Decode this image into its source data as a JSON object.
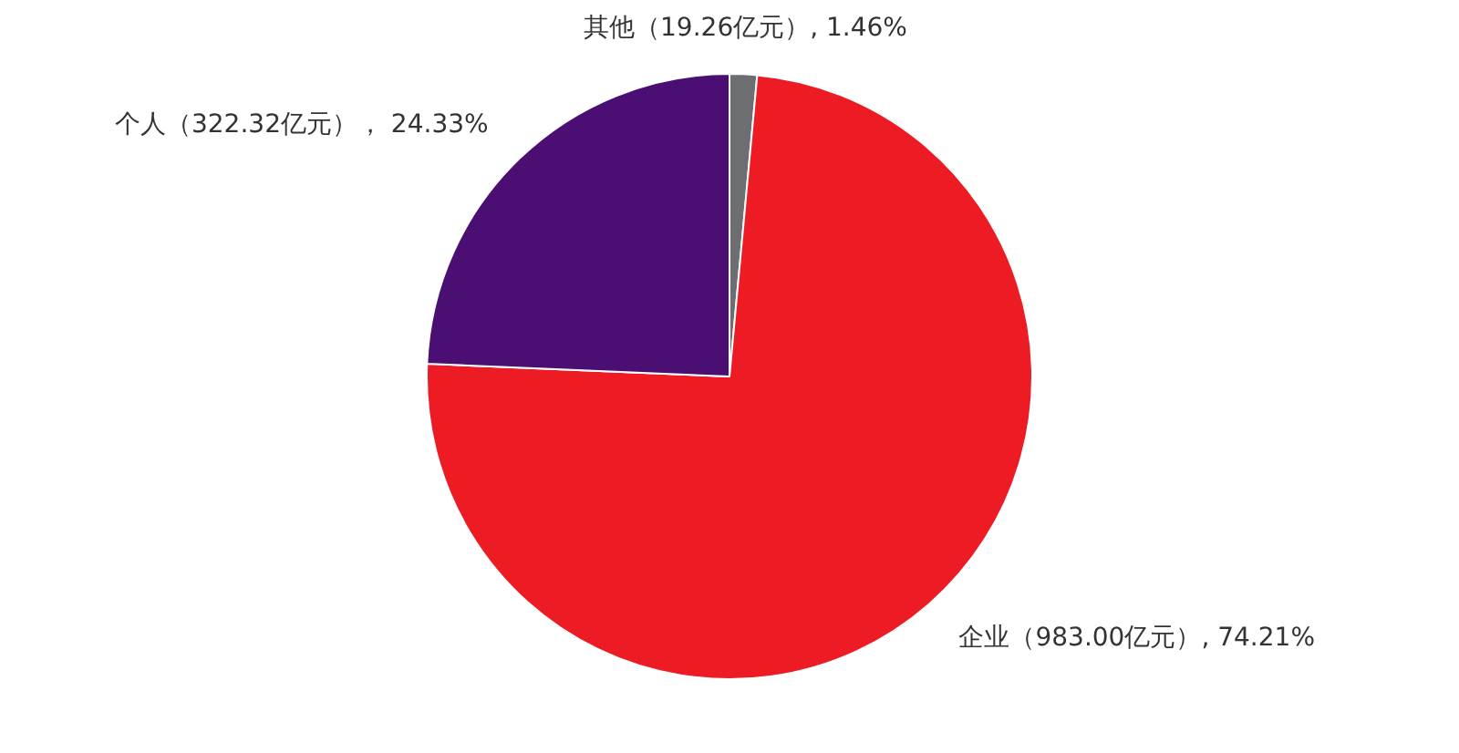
{
  "chart_data": {
    "type": "pie",
    "categories": [
      "其他",
      "企业",
      "个人"
    ],
    "values": [
      1.46,
      74.21,
      24.33
    ],
    "colors": [
      "#6d6e71",
      "#ed1c24",
      "#4b0f73"
    ],
    "value_labels": [
      "（19.26亿元）, 1.46%",
      "（983.00亿元）, 74.21%",
      "（322.32亿元）， 24.33%"
    ],
    "legend": false
  }
}
